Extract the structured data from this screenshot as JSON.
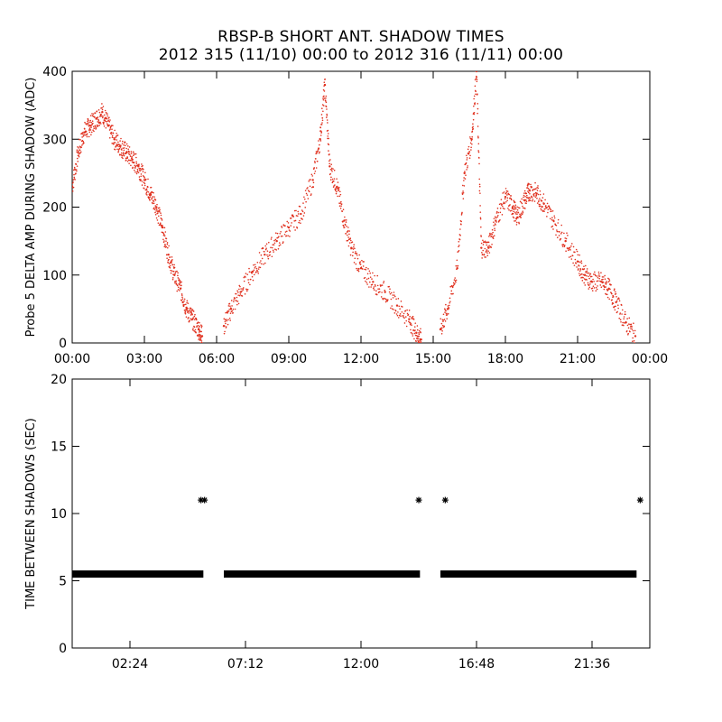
{
  "title_line1": "RBSP-B SHORT ANT. SHADOW TIMES",
  "title_line2": "2012 315 (11/10) 00:00 to 2012 316 (11/11) 00:00",
  "colors": {
    "top_series": "#e0301e",
    "bottom_series": "#000000",
    "axes": "#000000"
  },
  "chart_data": [
    {
      "type": "scatter",
      "ylabel": "Probe 5 DELTA AMP DURING SHADOW (ADC)",
      "xlabel": "",
      "xlim": [
        0,
        24
      ],
      "ylim": [
        0,
        400
      ],
      "x_tick_labels": [
        "00:00",
        "03:00",
        "06:00",
        "09:00",
        "12:00",
        "15:00",
        "18:00",
        "21:00",
        "00:00"
      ],
      "y_tick_labels": [
        "0",
        "100",
        "200",
        "300",
        "400"
      ],
      "grid": false,
      "series": [
        {
          "x_hours": [
            0.0,
            0.25,
            0.5,
            0.75,
            1.0,
            1.25,
            1.5,
            1.75,
            2.0,
            2.25,
            2.5,
            2.75,
            3.0,
            3.25,
            3.5,
            3.75,
            4.0,
            4.25,
            4.5,
            4.75,
            5.0,
            5.25,
            5.4,
            6.3,
            6.6,
            7.0,
            7.5,
            8.0,
            8.5,
            9.0,
            9.5,
            10.0,
            10.3,
            10.5,
            10.7,
            11.0,
            11.3,
            11.6,
            12.0,
            12.5,
            13.0,
            13.5,
            14.0,
            14.3,
            14.5,
            15.3,
            15.6,
            16.0,
            16.3,
            16.6,
            16.8,
            17.0,
            17.3,
            17.6,
            18.0,
            18.3,
            18.5,
            18.8,
            19.0,
            19.3,
            19.6,
            20.0,
            20.5,
            21.0,
            21.3,
            21.6,
            22.0,
            22.3,
            22.6,
            23.0,
            23.4
          ],
          "y_values": [
            230,
            280,
            310,
            320,
            330,
            340,
            320,
            300,
            290,
            280,
            270,
            260,
            240,
            220,
            200,
            170,
            130,
            100,
            80,
            50,
            35,
            20,
            10,
            25,
            50,
            75,
            105,
            130,
            150,
            170,
            190,
            240,
            300,
            380,
            260,
            230,
            180,
            140,
            110,
            90,
            75,
            55,
            35,
            15,
            5,
            20,
            50,
            110,
            250,
            300,
            400,
            140,
            140,
            180,
            215,
            200,
            185,
            210,
            225,
            220,
            205,
            180,
            150,
            120,
            100,
            90,
            90,
            80,
            60,
            30,
            10
          ]
        }
      ]
    },
    {
      "type": "scatter",
      "ylabel": "TIME BETWEEN SHADOWS (SEC)",
      "xlabel": "",
      "xlim": [
        0,
        24
      ],
      "ylim": [
        0,
        20
      ],
      "x_tick_labels": [
        "02:24",
        "07:12",
        "12:00",
        "16:48",
        "21:36"
      ],
      "y_tick_labels": [
        "0",
        "5",
        "10",
        "15",
        "20"
      ],
      "grid": false,
      "baseline_value": 5.5,
      "baseline_segments_hours": [
        [
          0.0,
          5.45
        ],
        [
          6.3,
          14.45
        ],
        [
          15.3,
          23.45
        ]
      ],
      "outlier_points": [
        {
          "x_hours": 5.35,
          "y": 11.0
        },
        {
          "x_hours": 5.5,
          "y": 11.0
        },
        {
          "x_hours": 14.4,
          "y": 11.0
        },
        {
          "x_hours": 15.5,
          "y": 11.0
        },
        {
          "x_hours": 23.6,
          "y": 11.0
        }
      ]
    }
  ]
}
